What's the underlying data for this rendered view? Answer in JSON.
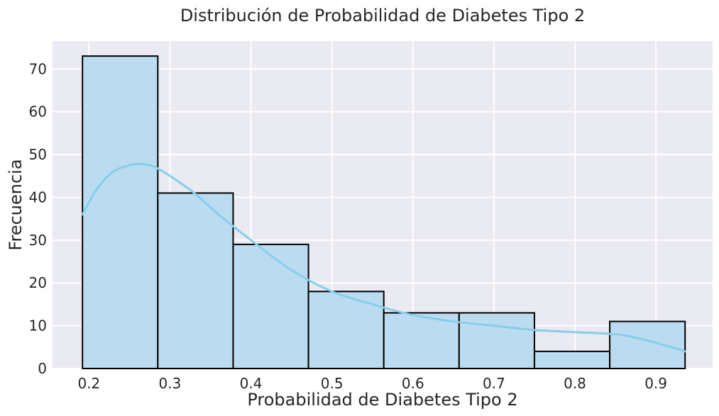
{
  "chart_data": {
    "type": "histogram",
    "title": "Distribución de Probabilidad de Diabetes Tipo 2",
    "xlabel": "Probabilidad de Diabetes Tipo 2",
    "ylabel": "Frecuencia",
    "xlim": [
      0.155,
      0.97
    ],
    "ylim": [
      0,
      76.5
    ],
    "xticks": [
      0.2,
      0.3,
      0.4,
      0.5,
      0.6,
      0.7,
      0.8,
      0.9
    ],
    "xtick_labels": [
      "0.2",
      "0.3",
      "0.4",
      "0.5",
      "0.6",
      "0.7",
      "0.8",
      "0.9"
    ],
    "yticks": [
      0,
      10,
      20,
      30,
      40,
      50,
      60,
      70
    ],
    "ytick_labels": [
      "0",
      "10",
      "20",
      "30",
      "40",
      "50",
      "60",
      "70"
    ],
    "bins": [
      {
        "x0": 0.192,
        "x1": 0.285,
        "count": 73
      },
      {
        "x0": 0.285,
        "x1": 0.378,
        "count": 41
      },
      {
        "x0": 0.378,
        "x1": 0.471,
        "count": 29
      },
      {
        "x0": 0.471,
        "x1": 0.564,
        "count": 18
      },
      {
        "x0": 0.564,
        "x1": 0.657,
        "count": 13
      },
      {
        "x0": 0.657,
        "x1": 0.75,
        "count": 13
      },
      {
        "x0": 0.75,
        "x1": 0.843,
        "count": 4
      },
      {
        "x0": 0.843,
        "x1": 0.936,
        "count": 11
      }
    ],
    "kde": {
      "x": [
        0.192,
        0.21,
        0.23,
        0.25,
        0.265,
        0.28,
        0.3,
        0.33,
        0.36,
        0.4,
        0.45,
        0.5,
        0.55,
        0.6,
        0.65,
        0.7,
        0.75,
        0.8,
        0.85,
        0.88,
        0.91,
        0.936
      ],
      "y": [
        36,
        42,
        46,
        47.5,
        47.8,
        47.2,
        45,
        41,
        36,
        30,
        23,
        18,
        15,
        12.5,
        11,
        10,
        9,
        8.5,
        8,
        7,
        5.5,
        4
      ]
    },
    "grid": true,
    "colors": {
      "bar_fill": "#bbdcf0",
      "bar_edge": "#000000",
      "kde_line": "#87ceeb",
      "plot_background": "#eaeaf2",
      "grid": "#ffffff"
    }
  }
}
